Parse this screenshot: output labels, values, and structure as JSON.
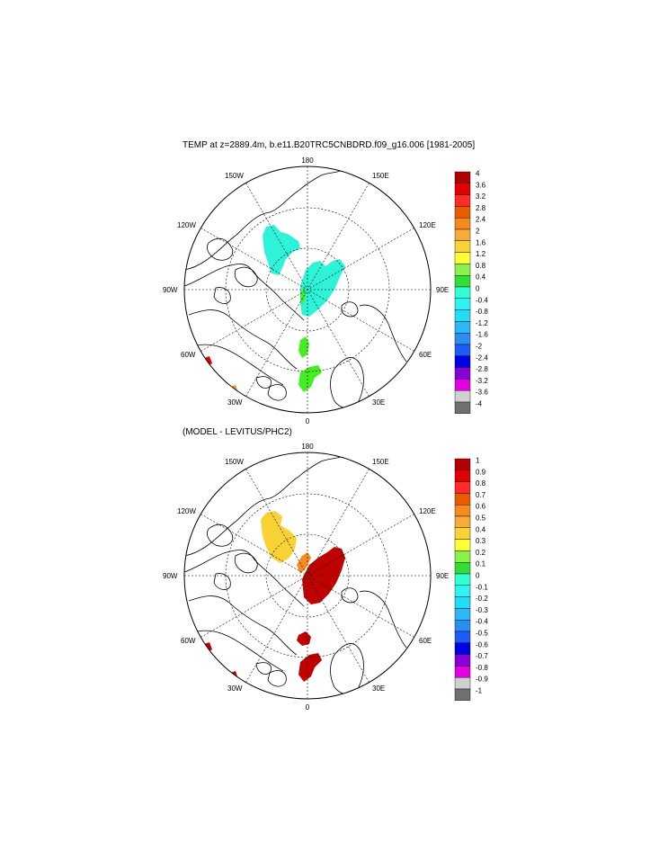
{
  "title_top": "TEMP at z=2889.4m, b.e11.B20TRC5CNBDRD.f09_g16.006 [1981-2005]",
  "title_bottom": "(MODEL - LEVITUS/PHC2)",
  "longitude_labels": {
    "n180": "180",
    "w150": "150W",
    "e150": "150E",
    "w120": "120W",
    "e120": "120E",
    "w90": "90W",
    "e90": "90E",
    "w60": "60W",
    "e60": "60E",
    "w30": "30W",
    "e30": "30E",
    "zero": "0"
  },
  "colorbar_top": {
    "labels": [
      "4",
      "3.6",
      "3.2",
      "2.8",
      "2.4",
      "2",
      "1.6",
      "1.2",
      "0.8",
      "0.4",
      "0",
      "-0.4",
      "-0.8",
      "-1.2",
      "-1.6",
      "-2",
      "-2.4",
      "-2.8",
      "-3.2",
      "-3.6",
      "-4"
    ],
    "colors": [
      "#b30000",
      "#e00000",
      "#ff2b2b",
      "#e85c00",
      "#f58a1f",
      "#f7ab3a",
      "#f9d335",
      "#ffff33",
      "#8cf04a",
      "#33dd33",
      "#33ffd5",
      "#2ff3f3",
      "#25dcf5",
      "#2cb7f5",
      "#2a8ff0",
      "#1e5cf5",
      "#0000e6",
      "#8800d8",
      "#e000e0",
      "#d0d0d0",
      "#707070"
    ]
  },
  "colorbar_bottom": {
    "labels": [
      "1",
      "0.9",
      "0.8",
      "0.7",
      "0.6",
      "0.5",
      "0.4",
      "0.3",
      "0.2",
      "0.1",
      "0",
      "-0.1",
      "-0.2",
      "-0.3",
      "-0.4",
      "-0.5",
      "-0.6",
      "-0.7",
      "-0.8",
      "-0.9",
      "-1"
    ],
    "colors": [
      "#b30000",
      "#e00000",
      "#ff2b2b",
      "#e85c00",
      "#f58a1f",
      "#f7ab3a",
      "#f9d335",
      "#ffff33",
      "#8cf04a",
      "#33dd33",
      "#33ffd5",
      "#2ff3f3",
      "#25dcf5",
      "#2cb7f5",
      "#2a8ff0",
      "#1e5cf5",
      "#0000e6",
      "#8800d8",
      "#e000e0",
      "#d0d0d0",
      "#707070"
    ]
  },
  "fields": {
    "top_cyan": "#2ff3d8",
    "top_green": "#44ee22",
    "bottom_yellow": "#f9d335",
    "bottom_orange": "#f58a1f",
    "bottom_darkred": "#c00000",
    "small_red": "#e00000"
  }
}
